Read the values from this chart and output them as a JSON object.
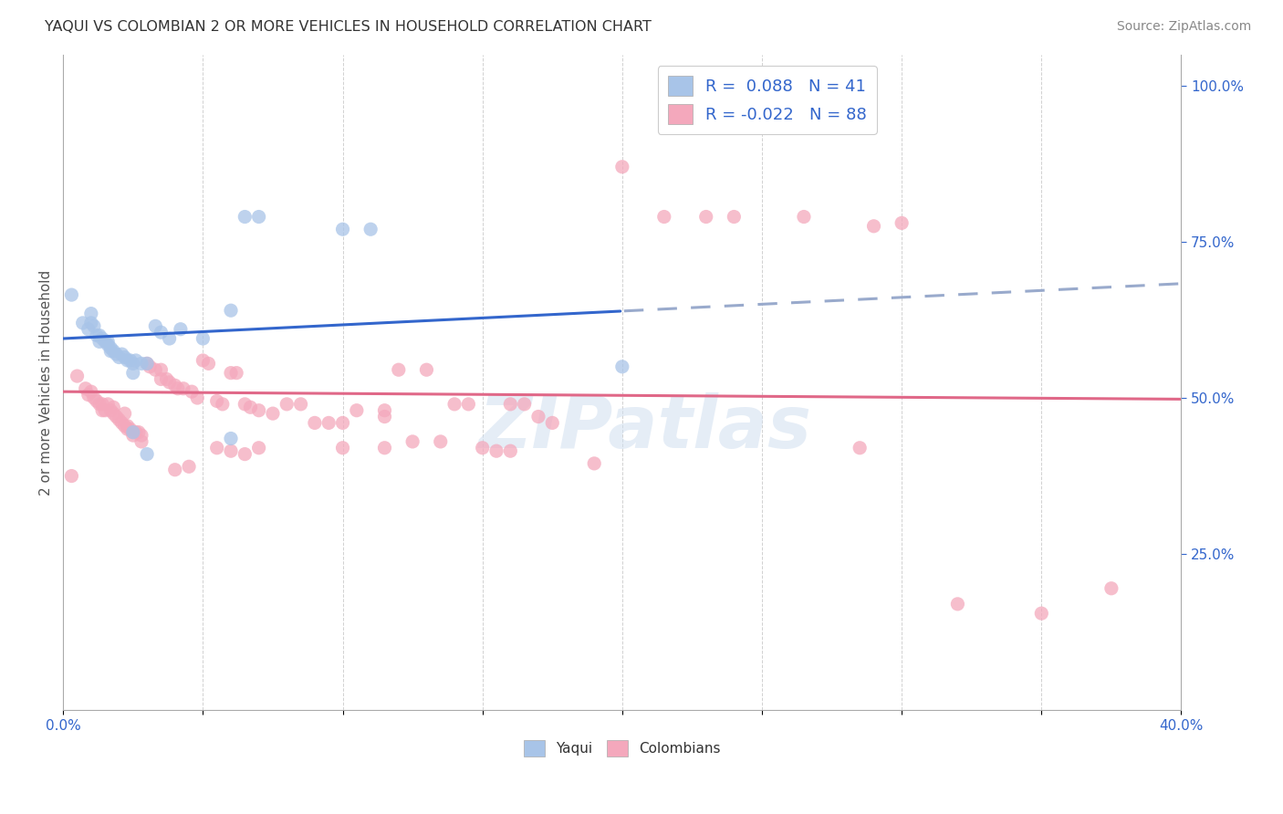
{
  "title": "YAQUI VS COLOMBIAN 2 OR MORE VEHICLES IN HOUSEHOLD CORRELATION CHART",
  "source": "Source: ZipAtlas.com",
  "ylabel": "2 or more Vehicles in Household",
  "xlim": [
    0.0,
    0.4
  ],
  "ylim": [
    0.0,
    1.05
  ],
  "xtick_positions": [
    0.0,
    0.05,
    0.1,
    0.15,
    0.2,
    0.25,
    0.3,
    0.35,
    0.4
  ],
  "xtick_labels": [
    "0.0%",
    "",
    "",
    "",
    "",
    "",
    "",
    "",
    "40.0%"
  ],
  "yticks_right": [
    0.25,
    0.5,
    0.75,
    1.0
  ],
  "ytick_labels_right": [
    "25.0%",
    "50.0%",
    "75.0%",
    "100.0%"
  ],
  "yaqui_color": "#a8c4e8",
  "colombian_color": "#f4a8bc",
  "trend_yaqui_color": "#3366cc",
  "trend_yaqui_dash_color": "#99aacc",
  "trend_colombian_color": "#e06888",
  "watermark": "ZIPatlas",
  "background_color": "#ffffff",
  "grid_color": "#cccccc",
  "yaqui_points": [
    [
      0.003,
      0.665
    ],
    [
      0.007,
      0.62
    ],
    [
      0.009,
      0.61
    ],
    [
      0.01,
      0.635
    ],
    [
      0.01,
      0.62
    ],
    [
      0.011,
      0.615
    ],
    [
      0.012,
      0.6
    ],
    [
      0.013,
      0.6
    ],
    [
      0.013,
      0.59
    ],
    [
      0.014,
      0.595
    ],
    [
      0.015,
      0.59
    ],
    [
      0.016,
      0.59
    ],
    [
      0.016,
      0.585
    ],
    [
      0.017,
      0.58
    ],
    [
      0.017,
      0.575
    ],
    [
      0.018,
      0.575
    ],
    [
      0.019,
      0.57
    ],
    [
      0.02,
      0.565
    ],
    [
      0.021,
      0.57
    ],
    [
      0.022,
      0.565
    ],
    [
      0.023,
      0.56
    ],
    [
      0.024,
      0.56
    ],
    [
      0.025,
      0.555
    ],
    [
      0.025,
      0.54
    ],
    [
      0.026,
      0.56
    ],
    [
      0.028,
      0.555
    ],
    [
      0.03,
      0.555
    ],
    [
      0.033,
      0.615
    ],
    [
      0.035,
      0.605
    ],
    [
      0.038,
      0.595
    ],
    [
      0.042,
      0.61
    ],
    [
      0.05,
      0.595
    ],
    [
      0.06,
      0.64
    ],
    [
      0.065,
      0.79
    ],
    [
      0.07,
      0.79
    ],
    [
      0.1,
      0.77
    ],
    [
      0.11,
      0.77
    ],
    [
      0.025,
      0.445
    ],
    [
      0.03,
      0.41
    ],
    [
      0.06,
      0.435
    ],
    [
      0.2,
      0.55
    ]
  ],
  "colombian_points": [
    [
      0.003,
      0.375
    ],
    [
      0.005,
      0.535
    ],
    [
      0.008,
      0.515
    ],
    [
      0.009,
      0.505
    ],
    [
      0.01,
      0.51
    ],
    [
      0.011,
      0.5
    ],
    [
      0.012,
      0.495
    ],
    [
      0.013,
      0.49
    ],
    [
      0.014,
      0.49
    ],
    [
      0.014,
      0.48
    ],
    [
      0.015,
      0.48
    ],
    [
      0.016,
      0.49
    ],
    [
      0.017,
      0.48
    ],
    [
      0.018,
      0.485
    ],
    [
      0.018,
      0.475
    ],
    [
      0.019,
      0.47
    ],
    [
      0.02,
      0.465
    ],
    [
      0.021,
      0.46
    ],
    [
      0.022,
      0.475
    ],
    [
      0.022,
      0.455
    ],
    [
      0.023,
      0.455
    ],
    [
      0.023,
      0.45
    ],
    [
      0.024,
      0.45
    ],
    [
      0.025,
      0.445
    ],
    [
      0.025,
      0.44
    ],
    [
      0.026,
      0.445
    ],
    [
      0.027,
      0.445
    ],
    [
      0.028,
      0.44
    ],
    [
      0.028,
      0.43
    ],
    [
      0.03,
      0.555
    ],
    [
      0.031,
      0.55
    ],
    [
      0.033,
      0.545
    ],
    [
      0.035,
      0.545
    ],
    [
      0.035,
      0.53
    ],
    [
      0.037,
      0.53
    ],
    [
      0.038,
      0.525
    ],
    [
      0.04,
      0.52
    ],
    [
      0.041,
      0.515
    ],
    [
      0.043,
      0.515
    ],
    [
      0.046,
      0.51
    ],
    [
      0.048,
      0.5
    ],
    [
      0.05,
      0.56
    ],
    [
      0.052,
      0.555
    ],
    [
      0.055,
      0.495
    ],
    [
      0.057,
      0.49
    ],
    [
      0.06,
      0.54
    ],
    [
      0.062,
      0.54
    ],
    [
      0.065,
      0.49
    ],
    [
      0.067,
      0.485
    ],
    [
      0.07,
      0.48
    ],
    [
      0.075,
      0.475
    ],
    [
      0.08,
      0.49
    ],
    [
      0.085,
      0.49
    ],
    [
      0.09,
      0.46
    ],
    [
      0.095,
      0.46
    ],
    [
      0.1,
      0.46
    ],
    [
      0.105,
      0.48
    ],
    [
      0.115,
      0.48
    ],
    [
      0.115,
      0.47
    ],
    [
      0.12,
      0.545
    ],
    [
      0.13,
      0.545
    ],
    [
      0.14,
      0.49
    ],
    [
      0.145,
      0.49
    ],
    [
      0.16,
      0.49
    ],
    [
      0.165,
      0.49
    ],
    [
      0.17,
      0.47
    ],
    [
      0.175,
      0.46
    ],
    [
      0.04,
      0.385
    ],
    [
      0.045,
      0.39
    ],
    [
      0.055,
      0.42
    ],
    [
      0.06,
      0.415
    ],
    [
      0.065,
      0.41
    ],
    [
      0.07,
      0.42
    ],
    [
      0.1,
      0.42
    ],
    [
      0.115,
      0.42
    ],
    [
      0.125,
      0.43
    ],
    [
      0.135,
      0.43
    ],
    [
      0.15,
      0.42
    ],
    [
      0.155,
      0.415
    ],
    [
      0.16,
      0.415
    ],
    [
      0.19,
      0.395
    ],
    [
      0.2,
      0.87
    ],
    [
      0.215,
      0.79
    ],
    [
      0.23,
      0.79
    ],
    [
      0.24,
      0.79
    ],
    [
      0.265,
      0.79
    ],
    [
      0.29,
      0.775
    ],
    [
      0.3,
      0.78
    ],
    [
      0.285,
      0.42
    ],
    [
      0.32,
      0.17
    ],
    [
      0.35,
      0.155
    ],
    [
      0.375,
      0.195
    ]
  ],
  "trend_yaqui_intercept": 0.595,
  "trend_yaqui_slope": 0.22,
  "trend_colombian_intercept": 0.51,
  "trend_colombian_slope": -0.03
}
